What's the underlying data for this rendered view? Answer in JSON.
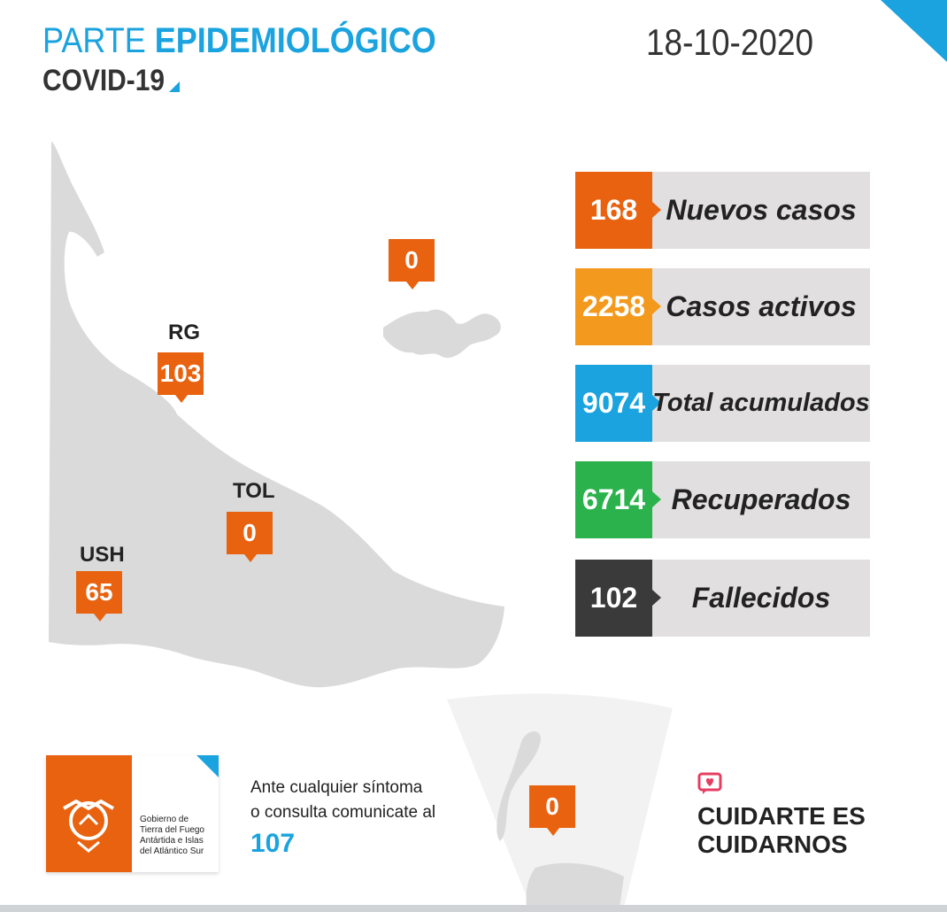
{
  "header": {
    "title_light": "PARTE",
    "title_bold": "EPIDEMIOLÓGICO",
    "subtitle": "COVID-19",
    "date": "18-10-2020"
  },
  "map": {
    "markers": [
      {
        "label": "RG",
        "value": "103"
      },
      {
        "label": "TOL",
        "value": "0"
      },
      {
        "label": "USH",
        "value": "65"
      },
      {
        "label": "",
        "value": "0"
      },
      {
        "label": "",
        "value": "0"
      }
    ]
  },
  "stats": [
    {
      "value": "168",
      "label": "Nuevos casos",
      "color": "#e8620f"
    },
    {
      "value": "2258",
      "label": "Casos activos",
      "color": "#f39a1e"
    },
    {
      "value": "9074",
      "label": "Total acumulados",
      "color": "#1aa3df"
    },
    {
      "value": "6714",
      "label": "Recuperados",
      "color": "#2bb24c"
    },
    {
      "value": "102",
      "label": "Fallecidos",
      "color": "#3a3a3a"
    }
  ],
  "footer": {
    "gov_line1": "Gobierno de",
    "gov_line2": "Tierra del Fuego",
    "gov_line3": "Antártida e Islas",
    "gov_line4": "del Atlántico Sur",
    "contact_line1": "Ante cualquier síntoma",
    "contact_line2": "o consulta comunicate al",
    "phone": "107",
    "slogan_line1": "CUIDARTE ES",
    "slogan_line2": "CUIDARNOS"
  },
  "colors": {
    "brand_blue": "#1aa3df",
    "brand_orange": "#e8620f",
    "map_gray": "#dadada"
  },
  "icons": [
    "corner-triangle-icon",
    "heart-chat-icon",
    "government-crest-icon"
  ]
}
